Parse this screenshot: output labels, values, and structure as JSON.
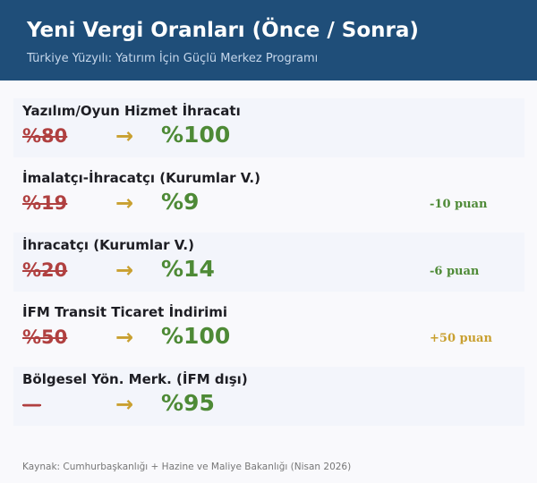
{
  "header": {
    "title": "Yeni Vergi Oranları (Önce / Sonra)",
    "subtitle": "Türkiye Yüzyılı: Yatırım İçin Güçlü Merkez Programı"
  },
  "colors": {
    "header_bg": "#1f4e79",
    "old": "#b04040",
    "new": "#4e8a36",
    "arrow": "#c9a030",
    "badge_negative": "#4e8a36",
    "badge_positive": "#c9a030"
  },
  "rows": [
    {
      "label": "Yazılım/Oyun Hizmet İhracatı",
      "old": "%80",
      "arrow": "→",
      "new": "%100",
      "badge": ""
    },
    {
      "label": "İmalatçı-İhracatçı (Kurumlar V.)",
      "old": "%19",
      "arrow": "→",
      "new": "%9",
      "badge": "-10 puan"
    },
    {
      "label": "İhracatçı (Kurumlar V.)",
      "old": "%20",
      "arrow": "→",
      "new": "%14",
      "badge": "-6 puan"
    },
    {
      "label": "İFM Transit Ticaret İndirimi",
      "old": "%50",
      "arrow": "→",
      "new": "%100",
      "badge": "+50 puan"
    },
    {
      "label": "Bölgesel Yön. Merk. (İFM dışı)",
      "old": "—",
      "arrow": "→",
      "new": "%95",
      "badge": ""
    }
  ],
  "footer": "Kaynak: Cumhurbaşkanlığı + Hazine ve Maliye Bakanlığı (Nisan 2026)"
}
